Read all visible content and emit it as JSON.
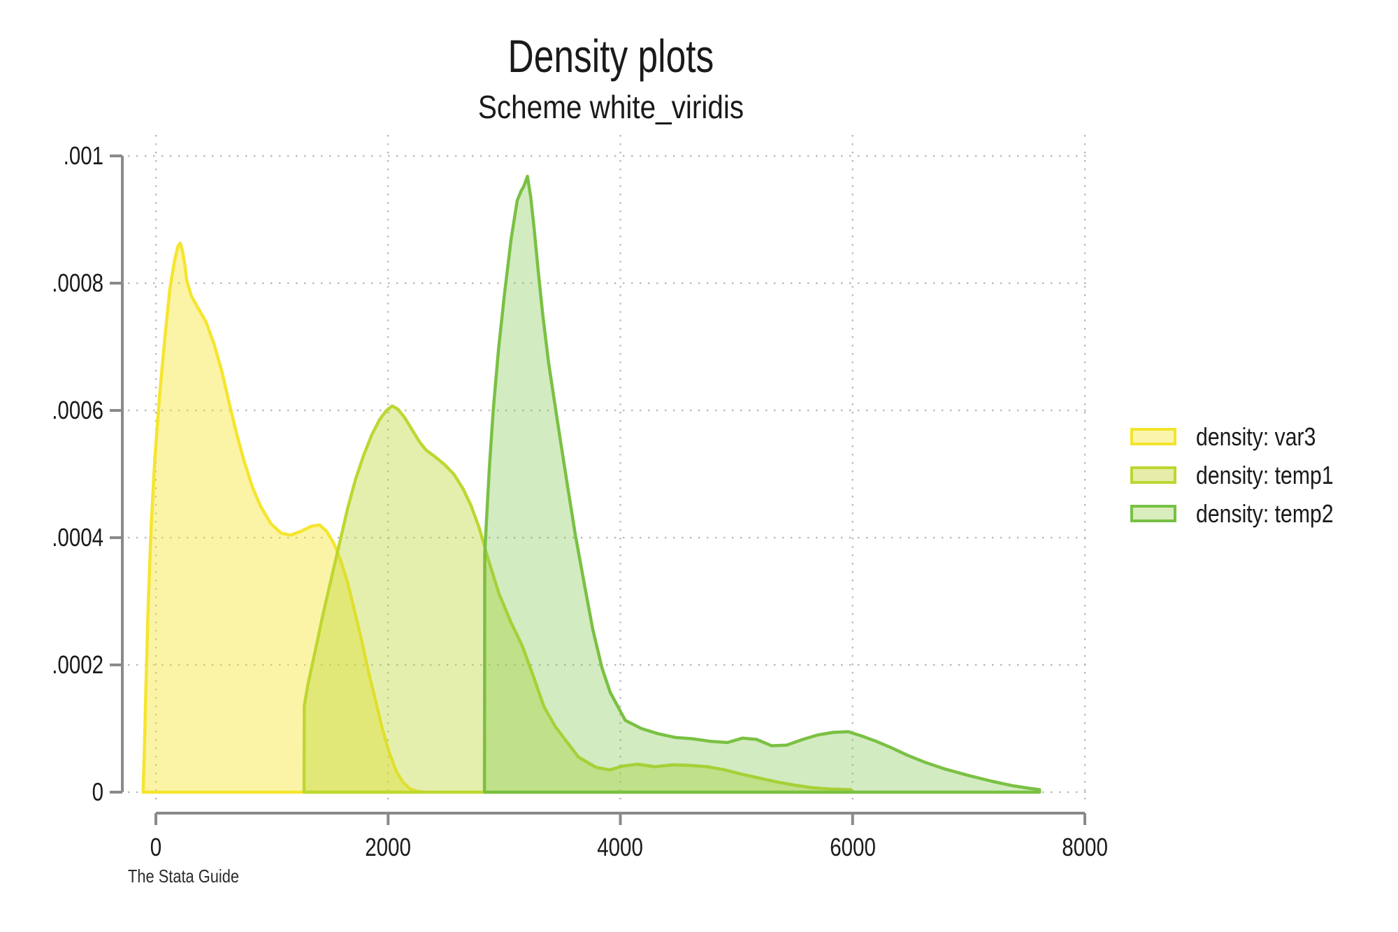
{
  "title": "Density plots",
  "subtitle": "Scheme white_viridis",
  "footer": "The Stata Guide",
  "legend": {
    "items": [
      {
        "label": "density: var3",
        "swatch_stroke": "#F2E42C",
        "swatch_fill": "#FBF5AC"
      },
      {
        "label": "density: temp1",
        "swatch_stroke": "#BCD631",
        "swatch_fill": "#E6EDA9"
      },
      {
        "label": "density: temp2",
        "swatch_stroke": "#77C144",
        "swatch_fill": "#D9EDBE"
      }
    ]
  },
  "chart_data": {
    "type": "area",
    "title": "Density plots",
    "subtitle": "Scheme white_viridis",
    "source_note": "The Stata Guide",
    "xlabel": "",
    "ylabel": "",
    "xlim": [
      0,
      8000
    ],
    "ylim": [
      0,
      0.001
    ],
    "grid": "dotted",
    "legend_position": "right-outside",
    "colors": {
      "grid": "#b5b5b5",
      "axis": "#8a8a8a",
      "text": "#1a1a1a"
    },
    "x_ticks": [
      {
        "value": 0,
        "label": "0"
      },
      {
        "value": 2000,
        "label": "2000"
      },
      {
        "value": 4000,
        "label": "4000"
      },
      {
        "value": 6000,
        "label": "6000"
      },
      {
        "value": 8000,
        "label": "8000"
      }
    ],
    "y_ticks": [
      {
        "value": 0,
        "label": "0"
      },
      {
        "value": 0.0002,
        "label": ".0002"
      },
      {
        "value": 0.0004,
        "label": ".0004"
      },
      {
        "value": 0.0006,
        "label": ".0006"
      },
      {
        "value": 0.0008,
        "label": ".0008"
      },
      {
        "value": 0.001,
        "label": ".001"
      }
    ],
    "series": [
      {
        "name": "density: var3",
        "color": "#F5E52E",
        "fill_opacity": 0.42,
        "points": [
          [
            -110,
            0
          ],
          [
            -100,
            6e-05
          ],
          [
            -85,
            0.00017
          ],
          [
            -65,
            0.0003
          ],
          [
            -40,
            0.00042
          ],
          [
            -10,
            0.00052
          ],
          [
            30,
            0.00062
          ],
          [
            75,
            0.00071
          ],
          [
            120,
            0.00079
          ],
          [
            160,
            0.000835
          ],
          [
            190,
            0.000858
          ],
          [
            210,
            0.000863
          ],
          [
            230,
            0.00085
          ],
          [
            250,
            0.000828
          ],
          [
            265,
            0.000805
          ],
          [
            305,
            0.00078
          ],
          [
            360,
            0.000762
          ],
          [
            430,
            0.00074
          ],
          [
            500,
            0.000705
          ],
          [
            570,
            0.00066
          ],
          [
            640,
            0.000605
          ],
          [
            700,
            0.00056
          ],
          [
            760,
            0.00052
          ],
          [
            830,
            0.00048
          ],
          [
            900,
            0.00045
          ],
          [
            990,
            0.000422
          ],
          [
            1080,
            0.000407
          ],
          [
            1160,
            0.000404
          ],
          [
            1250,
            0.00041
          ],
          [
            1340,
            0.000418
          ],
          [
            1410,
            0.00042
          ],
          [
            1470,
            0.00041
          ],
          [
            1530,
            0.000392
          ],
          [
            1590,
            0.000365
          ],
          [
            1650,
            0.00033
          ],
          [
            1710,
            0.000285
          ],
          [
            1770,
            0.00024
          ],
          [
            1830,
            0.00019
          ],
          [
            1890,
            0.000145
          ],
          [
            1950,
            0.0001
          ],
          [
            2010,
            6.2e-05
          ],
          [
            2070,
            3.3e-05
          ],
          [
            2130,
            1.5e-05
          ],
          [
            2190,
            5e-06
          ],
          [
            2260,
            1e-06
          ],
          [
            2320,
            0
          ]
        ]
      },
      {
        "name": "density: temp1",
        "color": "#BED732",
        "fill_opacity": 0.4,
        "points": [
          [
            1276,
            0
          ],
          [
            1278,
            0.000135
          ],
          [
            1310,
            0.00017
          ],
          [
            1370,
            0.00022
          ],
          [
            1440,
            0.00028
          ],
          [
            1510,
            0.000335
          ],
          [
            1580,
            0.00039
          ],
          [
            1650,
            0.000445
          ],
          [
            1720,
            0.000492
          ],
          [
            1790,
            0.00053
          ],
          [
            1860,
            0.000562
          ],
          [
            1925,
            0.000585
          ],
          [
            1985,
            0.0006
          ],
          [
            2035,
            0.000607
          ],
          [
            2085,
            0.000602
          ],
          [
            2145,
            0.000588
          ],
          [
            2205,
            0.00057
          ],
          [
            2265,
            0.000552
          ],
          [
            2325,
            0.000538
          ],
          [
            2405,
            0.000527
          ],
          [
            2485,
            0.000515
          ],
          [
            2565,
            0.0005
          ],
          [
            2645,
            0.000477
          ],
          [
            2715,
            0.00045
          ],
          [
            2785,
            0.000415
          ],
          [
            2855,
            0.00037
          ],
          [
            2955,
            0.000312
          ],
          [
            3055,
            0.000268
          ],
          [
            3155,
            0.00023
          ],
          [
            3255,
            0.00018
          ],
          [
            3340,
            0.000135
          ],
          [
            3440,
            0.000103
          ],
          [
            3535,
            8e-05
          ],
          [
            3640,
            5.5e-05
          ],
          [
            3790,
            3.9e-05
          ],
          [
            3910,
            3.5e-05
          ],
          [
            4020,
            4.1e-05
          ],
          [
            4150,
            4.4e-05
          ],
          [
            4300,
            4e-05
          ],
          [
            4450,
            4.3e-05
          ],
          [
            4600,
            4.2e-05
          ],
          [
            4750,
            4e-05
          ],
          [
            4900,
            3.5e-05
          ],
          [
            5050,
            2.8e-05
          ],
          [
            5200,
            2.2e-05
          ],
          [
            5350,
            1.6e-05
          ],
          [
            5500,
            1.1e-05
          ],
          [
            5650,
            7e-06
          ],
          [
            5800,
            5e-06
          ],
          [
            5985,
            4e-06
          ],
          [
            5985,
            0
          ]
        ]
      },
      {
        "name": "density: temp2",
        "color": "#7AC143",
        "fill_opacity": 0.33,
        "points": [
          [
            2830,
            0
          ],
          [
            2832,
            0.000375
          ],
          [
            2848,
            0.00043
          ],
          [
            2872,
            0.00051
          ],
          [
            2905,
            0.0006
          ],
          [
            2950,
            0.000695
          ],
          [
            3000,
            0.00078
          ],
          [
            3060,
            0.00087
          ],
          [
            3112,
            0.00093
          ],
          [
            3145,
            0.000945
          ],
          [
            3168,
            0.000952
          ],
          [
            3200,
            0.000968
          ],
          [
            3228,
            0.000935
          ],
          [
            3258,
            0.000885
          ],
          [
            3292,
            0.00082
          ],
          [
            3332,
            0.00075
          ],
          [
            3382,
            0.000675
          ],
          [
            3432,
            0.000615
          ],
          [
            3482,
            0.000555
          ],
          [
            3542,
            0.000485
          ],
          [
            3612,
            0.000405
          ],
          [
            3692,
            0.000325
          ],
          [
            3762,
            0.000256
          ],
          [
            3842,
            0.000195
          ],
          [
            3912,
            0.000157
          ],
          [
            4042,
            0.000113
          ],
          [
            4182,
            0.0001
          ],
          [
            4322,
            9.2e-05
          ],
          [
            4472,
            8.6e-05
          ],
          [
            4622,
            8.4e-05
          ],
          [
            4772,
            8e-05
          ],
          [
            4922,
            7.8e-05
          ],
          [
            5052,
            8.5e-05
          ],
          [
            5172,
            8.3e-05
          ],
          [
            5302,
            7.3e-05
          ],
          [
            5432,
            7.4e-05
          ],
          [
            5572,
            8.3e-05
          ],
          [
            5702,
            9e-05
          ],
          [
            5832,
            9.4e-05
          ],
          [
            5962,
            9.5e-05
          ],
          [
            6082,
            8.8e-05
          ],
          [
            6202,
            8e-05
          ],
          [
            6332,
            7e-05
          ],
          [
            6472,
            5.8e-05
          ],
          [
            6622,
            4.7e-05
          ],
          [
            6802,
            3.6e-05
          ],
          [
            7002,
            2.6e-05
          ],
          [
            7202,
            1.7e-05
          ],
          [
            7382,
            1e-05
          ],
          [
            7522,
            6e-06
          ],
          [
            7610,
            4e-06
          ],
          [
            7610,
            0
          ]
        ]
      }
    ]
  }
}
